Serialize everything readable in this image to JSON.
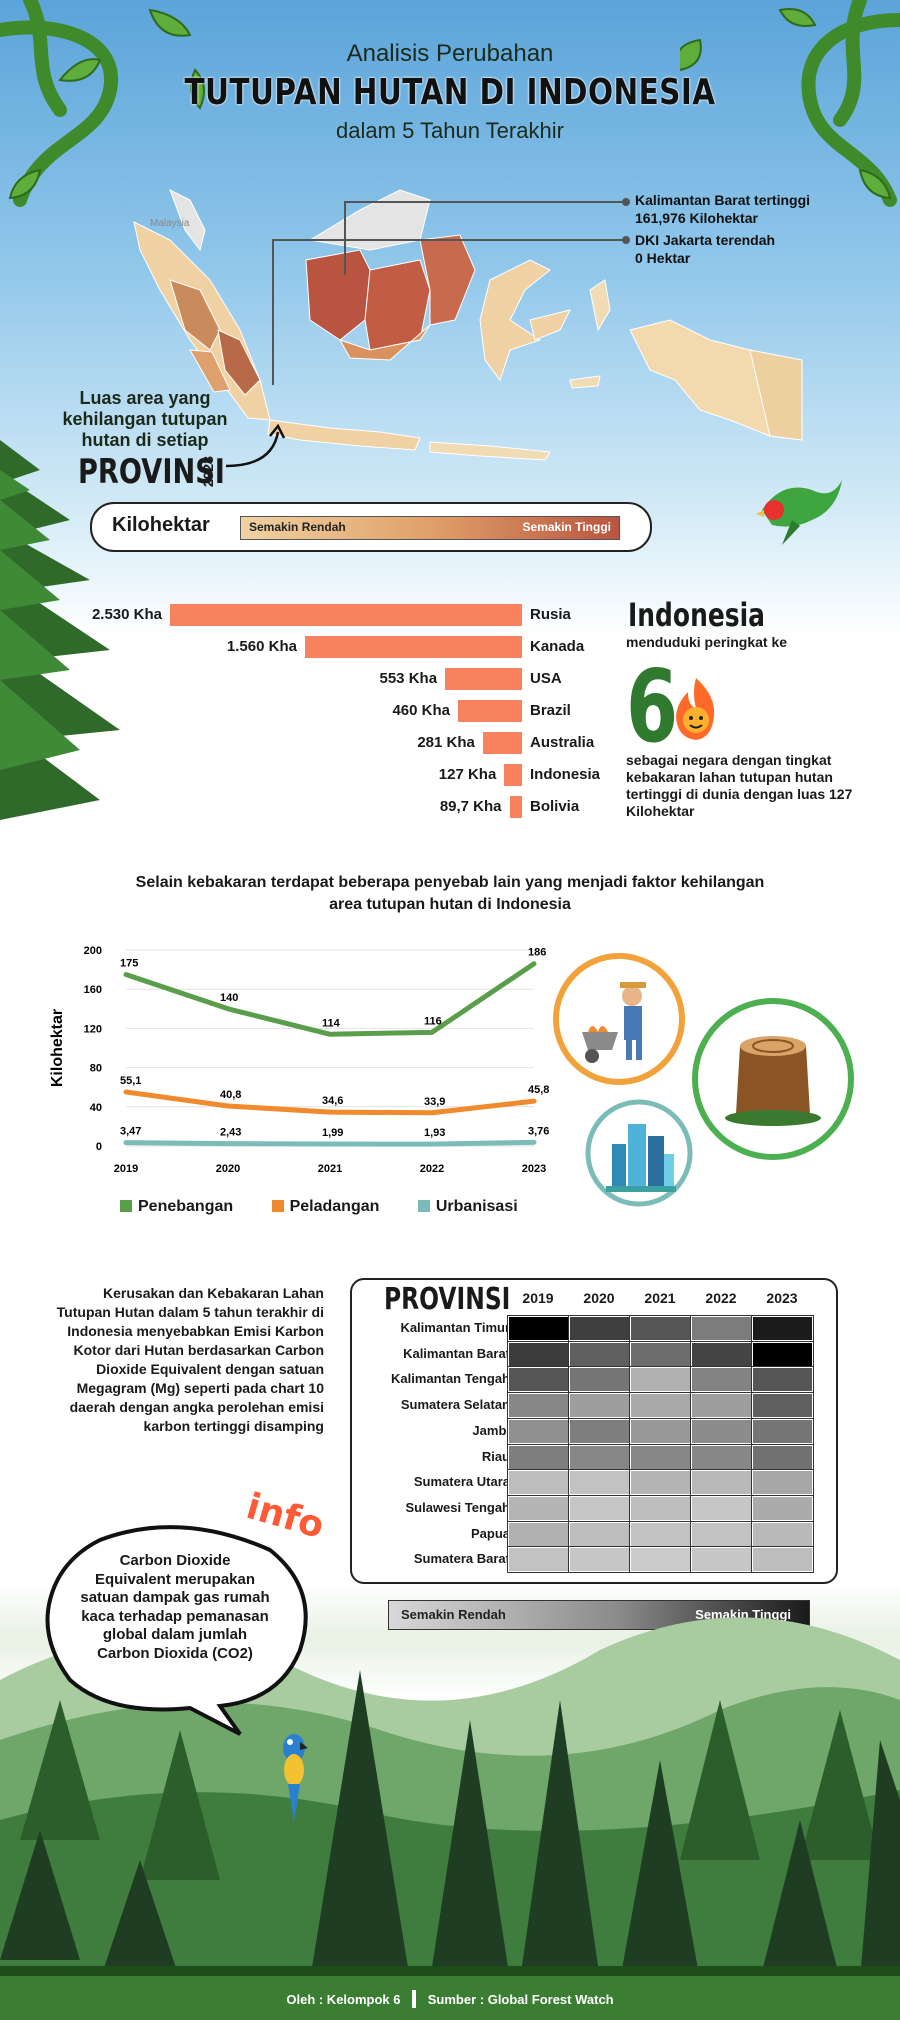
{
  "header": {
    "line1": "Analisis Perubahan",
    "line2": "TUTUPAN HUTAN DI INDONESIA",
    "line3": "dalam 5 Tahun Terakhir"
  },
  "map": {
    "label_malaysia": "Malaysia",
    "callout_high_title": "Kalimantan Barat tertinggi",
    "callout_high_value": "161,976 Kilohektar",
    "callout_low_title": "DKI Jakarta terendah",
    "callout_low_value": "0 Hektar",
    "caption": "Luas area yang kehilangan tutupan hutan di setiap",
    "caption_big": "PROVINSI",
    "caption_year": "2023"
  },
  "legend_map": {
    "unit": "Kilohektar",
    "low": "Semakin Rendah",
    "high": "Semakin Tinggi",
    "colors": [
      "#f0d2a2",
      "#e0a06a",
      "#b85540"
    ]
  },
  "fire_chart": {
    "bar_color": "#f9825e",
    "rows": [
      {
        "label": "2.530 Kha",
        "country": "Rusia",
        "value": 2530
      },
      {
        "label": "1.560 Kha",
        "country": "Kanada",
        "value": 1560
      },
      {
        "label": "553 Kha",
        "country": "USA",
        "value": 553
      },
      {
        "label": "460 Kha",
        "country": "Brazil",
        "value": 460
      },
      {
        "label": "281 Kha",
        "country": "Australia",
        "value": 281
      },
      {
        "label": "127 Kha",
        "country": "Indonesia",
        "value": 127
      },
      {
        "label": "89,7 Kha",
        "country": "Bolivia",
        "value": 89.7
      }
    ],
    "indo_title": "Indonesia",
    "indo_sub": "menduduki peringkat ke",
    "rank": "6",
    "indo_desc": "sebagai negara dengan tingkat kebakaran lahan tutupan hutan tertinggi di dunia dengan luas 127 Kilohektar"
  },
  "chart_data": [
    {
      "type": "bar",
      "orientation": "horizontal",
      "categories": [
        "Rusia",
        "Kanada",
        "USA",
        "Brazil",
        "Australia",
        "Indonesia",
        "Bolivia"
      ],
      "values": [
        2530,
        1560,
        553,
        460,
        281,
        127,
        89.7
      ],
      "data_labels": [
        "2.530 Kha",
        "1.560 Kha",
        "553 Kha",
        "460 Kha",
        "281 Kha",
        "127 Kha",
        "89,7 Kha"
      ],
      "title": "",
      "xlabel": "",
      "ylabel": ""
    },
    {
      "type": "line",
      "title": "Selain kebakaran terdapat beberapa penyebab lain yang menjadi faktor kehilangan area tutupan hutan di Indonesia",
      "x": [
        "2019",
        "2020",
        "2021",
        "2022",
        "2023"
      ],
      "ylabel": "Kilohektar",
      "ylim": [
        0,
        200
      ],
      "yticks": [
        0,
        40,
        80,
        120,
        160,
        200
      ],
      "grid": true,
      "legend_position": "bottom",
      "series": [
        {
          "name": "Penebangan",
          "color": "#5a9e4b",
          "values": [
            175,
            140,
            114,
            116,
            186
          ],
          "labels": [
            "175",
            "140",
            "114",
            "116",
            "186"
          ]
        },
        {
          "name": "Peladangan",
          "color": "#f08a2c",
          "values": [
            55.1,
            40.8,
            34.6,
            33.9,
            45.8
          ],
          "labels": [
            "55,1",
            "40,8",
            "34,6",
            "33,9",
            "45,8"
          ]
        },
        {
          "name": "Urbanisasi",
          "color": "#7bbcb8",
          "values": [
            3.47,
            2.43,
            1.99,
            1.93,
            3.76
          ],
          "labels": [
            "3,47",
            "2,43",
            "1,99",
            "1,93",
            "3,76"
          ]
        }
      ]
    },
    {
      "type": "heatmap",
      "title": "PROVINSI",
      "x": [
        "2019",
        "2020",
        "2021",
        "2022",
        "2023"
      ],
      "y": [
        "Kalimantan Timur",
        "Kalimantan Barat",
        "Kalimantan Tengah",
        "Sumatera Selatan",
        "Jambi",
        "Riau",
        "Sumatera Utara",
        "Sulawesi Tengah",
        "Papua",
        "Sumatera Barat"
      ],
      "values": [
        [
          1.0,
          0.72,
          0.62,
          0.45,
          0.88
        ],
        [
          0.74,
          0.58,
          0.52,
          0.7,
          1.0
        ],
        [
          0.62,
          0.48,
          0.22,
          0.42,
          0.62
        ],
        [
          0.4,
          0.3,
          0.25,
          0.3,
          0.58
        ],
        [
          0.36,
          0.44,
          0.32,
          0.38,
          0.48
        ],
        [
          0.44,
          0.4,
          0.4,
          0.4,
          0.5
        ],
        [
          0.16,
          0.14,
          0.2,
          0.18,
          0.26
        ],
        [
          0.2,
          0.12,
          0.16,
          0.12,
          0.24
        ],
        [
          0.22,
          0.16,
          0.14,
          0.14,
          0.18
        ],
        [
          0.14,
          0.12,
          0.1,
          0.12,
          0.16
        ]
      ],
      "value_scale": "relative 0-1, Semakin Rendah to Semakin Tinggi"
    }
  ],
  "emission": {
    "paragraph": "Kerusakan dan Kebakaran Lahan Tutupan Hutan dalam 5 tahun terakhir di Indonesia menyebabkan Emisi Karbon Kotor dari Hutan berdasarkan Carbon Dioxide Equivalent dengan satuan Megagram (Mg) seperti pada chart 10 daerah dengan angka perolehan emisi karbon tertinggi disamping",
    "legend_low": "Semakin Rendah",
    "legend_high": "Semakin Tinggi"
  },
  "info": {
    "word": "info",
    "text": "Carbon Dioxide Equivalent merupakan satuan dampak gas rumah kaca terhadap pemanasan global dalam jumlah Carbon Dioxida (CO2)"
  },
  "footer": {
    "by": "Oleh : Kelompok 6",
    "source": "Sumber : Global Forest Watch"
  }
}
